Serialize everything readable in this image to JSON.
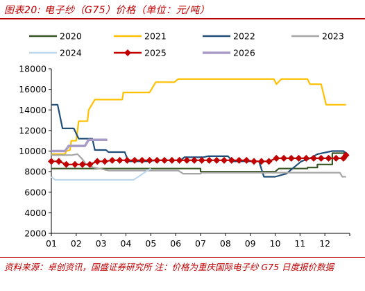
{
  "title": "图表20:  电子纱（G75）价格（单位：元/吨）",
  "source": "资料来源：卓创资讯，国盛证券研究所    注：价格为重庆国际电子纱 G75 日度报价数据",
  "chart_data": {
    "type": "line",
    "x_labels": [
      "01",
      "02",
      "03",
      "04",
      "05",
      "06",
      "07",
      "08",
      "09",
      "10",
      "11",
      "12"
    ],
    "xlim": [
      1,
      13
    ],
    "ylim": [
      2000,
      18000
    ],
    "yticks": [
      2000,
      4000,
      6000,
      8000,
      10000,
      12000,
      14000,
      16000,
      18000
    ],
    "legend_position": "top",
    "grid": false,
    "series": [
      {
        "name": "2020",
        "color": "#375623",
        "marker": "none",
        "points": [
          [
            1.0,
            8300
          ],
          [
            7.0,
            8300
          ],
          [
            7.0,
            8000
          ],
          [
            10.0,
            8000
          ],
          [
            10.15,
            8300
          ],
          [
            11.3,
            8300
          ],
          [
            11.3,
            8400
          ],
          [
            11.7,
            8400
          ],
          [
            11.7,
            8700
          ],
          [
            12.3,
            8700
          ],
          [
            12.3,
            9800
          ],
          [
            12.85,
            9800
          ]
        ]
      },
      {
        "name": "2021",
        "color": "#ffc000",
        "marker": "none",
        "points": [
          [
            1.0,
            9700
          ],
          [
            1.55,
            9700
          ],
          [
            1.6,
            10000
          ],
          [
            1.75,
            10100
          ],
          [
            1.8,
            11000
          ],
          [
            2.0,
            11000
          ],
          [
            2.1,
            12900
          ],
          [
            2.45,
            12900
          ],
          [
            2.5,
            14000
          ],
          [
            2.75,
            15000
          ],
          [
            3.85,
            15000
          ],
          [
            3.9,
            15700
          ],
          [
            4.95,
            15700
          ],
          [
            5.2,
            16700
          ],
          [
            5.95,
            16700
          ],
          [
            6.1,
            17000
          ],
          [
            9.95,
            17000
          ],
          [
            10.05,
            16500
          ],
          [
            10.25,
            17000
          ],
          [
            11.3,
            17000
          ],
          [
            11.4,
            16500
          ],
          [
            11.85,
            16500
          ],
          [
            12.05,
            14500
          ],
          [
            12.85,
            14500
          ]
        ]
      },
      {
        "name": "2022",
        "color": "#1f4e79",
        "marker": "none",
        "points": [
          [
            1.0,
            14500
          ],
          [
            1.25,
            14500
          ],
          [
            1.45,
            12200
          ],
          [
            1.9,
            12200
          ],
          [
            2.1,
            11200
          ],
          [
            2.65,
            11200
          ],
          [
            2.75,
            10100
          ],
          [
            3.2,
            10100
          ],
          [
            3.3,
            9900
          ],
          [
            3.95,
            9900
          ],
          [
            4.1,
            9000
          ],
          [
            4.9,
            9000
          ],
          [
            5.2,
            9100
          ],
          [
            6.2,
            9100
          ],
          [
            6.35,
            9400
          ],
          [
            7.1,
            9400
          ],
          [
            7.3,
            9500
          ],
          [
            8.1,
            9500
          ],
          [
            8.3,
            9000
          ],
          [
            9.35,
            9000
          ],
          [
            9.55,
            7500
          ],
          [
            10.0,
            7500
          ],
          [
            10.45,
            7800
          ],
          [
            10.8,
            8500
          ],
          [
            11.05,
            9000
          ],
          [
            11.4,
            9300
          ],
          [
            11.7,
            9700
          ],
          [
            12.3,
            10000
          ],
          [
            12.75,
            10000
          ],
          [
            12.85,
            9800
          ]
        ]
      },
      {
        "name": "2023",
        "color": "#a6a6a6",
        "marker": "none",
        "points": [
          [
            1.0,
            9600
          ],
          [
            1.8,
            9600
          ],
          [
            2.05,
            9700
          ],
          [
            2.25,
            9200
          ],
          [
            2.4,
            8700
          ],
          [
            2.7,
            8400
          ],
          [
            2.95,
            8300
          ],
          [
            3.3,
            8100
          ],
          [
            4.9,
            8100
          ],
          [
            5.5,
            8100
          ],
          [
            6.1,
            8100
          ],
          [
            6.3,
            7800
          ],
          [
            7.0,
            7800
          ],
          [
            7.05,
            7900
          ],
          [
            12.6,
            7900
          ],
          [
            12.7,
            7500
          ],
          [
            12.85,
            7500
          ]
        ]
      },
      {
        "name": "2024",
        "color": "#bdd7ee",
        "marker": "none",
        "points": [
          [
            1.0,
            7500
          ],
          [
            1.15,
            7200
          ],
          [
            4.3,
            7200
          ],
          [
            4.5,
            7500
          ],
          [
            4.8,
            8000
          ],
          [
            5.0,
            8300
          ]
        ]
      },
      {
        "name": "2025",
        "color": "#c00000",
        "marker": "diamond",
        "points": [
          [
            1.0,
            9000
          ],
          [
            1.3,
            9000
          ],
          [
            1.6,
            8700
          ],
          [
            1.95,
            8700
          ],
          [
            2.25,
            8700
          ],
          [
            2.55,
            8700
          ],
          [
            2.85,
            9000
          ],
          [
            3.15,
            9000
          ],
          [
            3.45,
            9100
          ],
          [
            3.75,
            9100
          ],
          [
            4.05,
            9100
          ],
          [
            4.35,
            9100
          ],
          [
            4.65,
            9100
          ],
          [
            4.95,
            9100
          ],
          [
            5.25,
            9100
          ],
          [
            5.55,
            9100
          ],
          [
            5.85,
            9100
          ],
          [
            6.15,
            9100
          ],
          [
            6.45,
            9100
          ],
          [
            6.75,
            9100
          ],
          [
            7.05,
            9100
          ],
          [
            7.35,
            9100
          ],
          [
            7.65,
            9100
          ],
          [
            7.95,
            9100
          ],
          [
            8.25,
            9100
          ],
          [
            8.55,
            9100
          ],
          [
            8.85,
            9100
          ],
          [
            9.15,
            9000
          ],
          [
            9.45,
            9000
          ],
          [
            9.75,
            9000
          ],
          [
            10.05,
            9300
          ],
          [
            10.35,
            9300
          ],
          [
            10.65,
            9300
          ],
          [
            10.95,
            9300
          ],
          [
            11.25,
            9300
          ],
          [
            11.55,
            9300
          ],
          [
            11.85,
            9300
          ],
          [
            12.15,
            9300
          ],
          [
            12.45,
            9300
          ],
          [
            12.75,
            9300
          ],
          [
            12.85,
            9600
          ]
        ]
      },
      {
        "name": "2026",
        "color": "#a79bc8",
        "marker": "none",
        "points": [
          [
            1.0,
            10000
          ],
          [
            1.55,
            10000
          ],
          [
            1.7,
            10500
          ],
          [
            2.35,
            10500
          ],
          [
            2.5,
            11100
          ],
          [
            3.25,
            11100
          ]
        ]
      }
    ]
  }
}
